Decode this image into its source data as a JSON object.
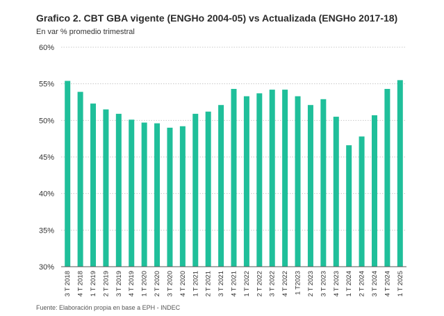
{
  "title": "Grafico 2. CBT GBA vigente (ENGHo 2004-05) vs Actualizada (ENGHo 2017-18)",
  "subtitle": "En var % promedio trimestral",
  "source": "Fuente: Elaboración propia en base a EPH - INDEC",
  "colors": {
    "bar": "#1fbf9a",
    "grid": "#c8c8c8",
    "axis": "#555555"
  },
  "chart_data": {
    "type": "bar",
    "title": "Grafico 2. CBT GBA vigente (ENGHo 2004-05) vs Actualizada (ENGHo 2017-18)",
    "subtitle": "En var % promedio trimestral",
    "xlabel": "",
    "ylabel": "",
    "ylim": [
      30,
      60
    ],
    "yticks": [
      30,
      35,
      40,
      45,
      50,
      55,
      60
    ],
    "ytick_labels": [
      "30%",
      "35%",
      "40%",
      "45%",
      "50%",
      "55%",
      "60%"
    ],
    "grid": "horizontal dotted",
    "categories": [
      "3 T 2018",
      "4 T 2018",
      "1 T 2019",
      "2 T 2019",
      "3 T 2019",
      "4 T 2019",
      "1 T 2020",
      "2 T 2020",
      "3 T 2020",
      "4 T 2020",
      "1 T 2021",
      "2 T 2021",
      "3 T 2021",
      "4 T 2021",
      "1 T 2022",
      "2 T 2022",
      "3 T 2022",
      "4 T 2022",
      "1 T2023",
      "2 T 2023",
      "3 T 2023",
      "4 T 2023",
      "1 T 2024",
      "2 T 2024",
      "3 T 2024",
      "4 T 2024",
      "1 T 2025"
    ],
    "values": [
      55.4,
      53.9,
      52.3,
      51.5,
      50.9,
      50.1,
      49.7,
      49.6,
      49.0,
      49.2,
      50.9,
      51.2,
      52.1,
      54.3,
      53.3,
      53.7,
      54.2,
      54.2,
      53.3,
      52.1,
      52.9,
      50.5,
      46.6,
      47.8,
      50.7,
      54.3,
      55.5
    ]
  }
}
